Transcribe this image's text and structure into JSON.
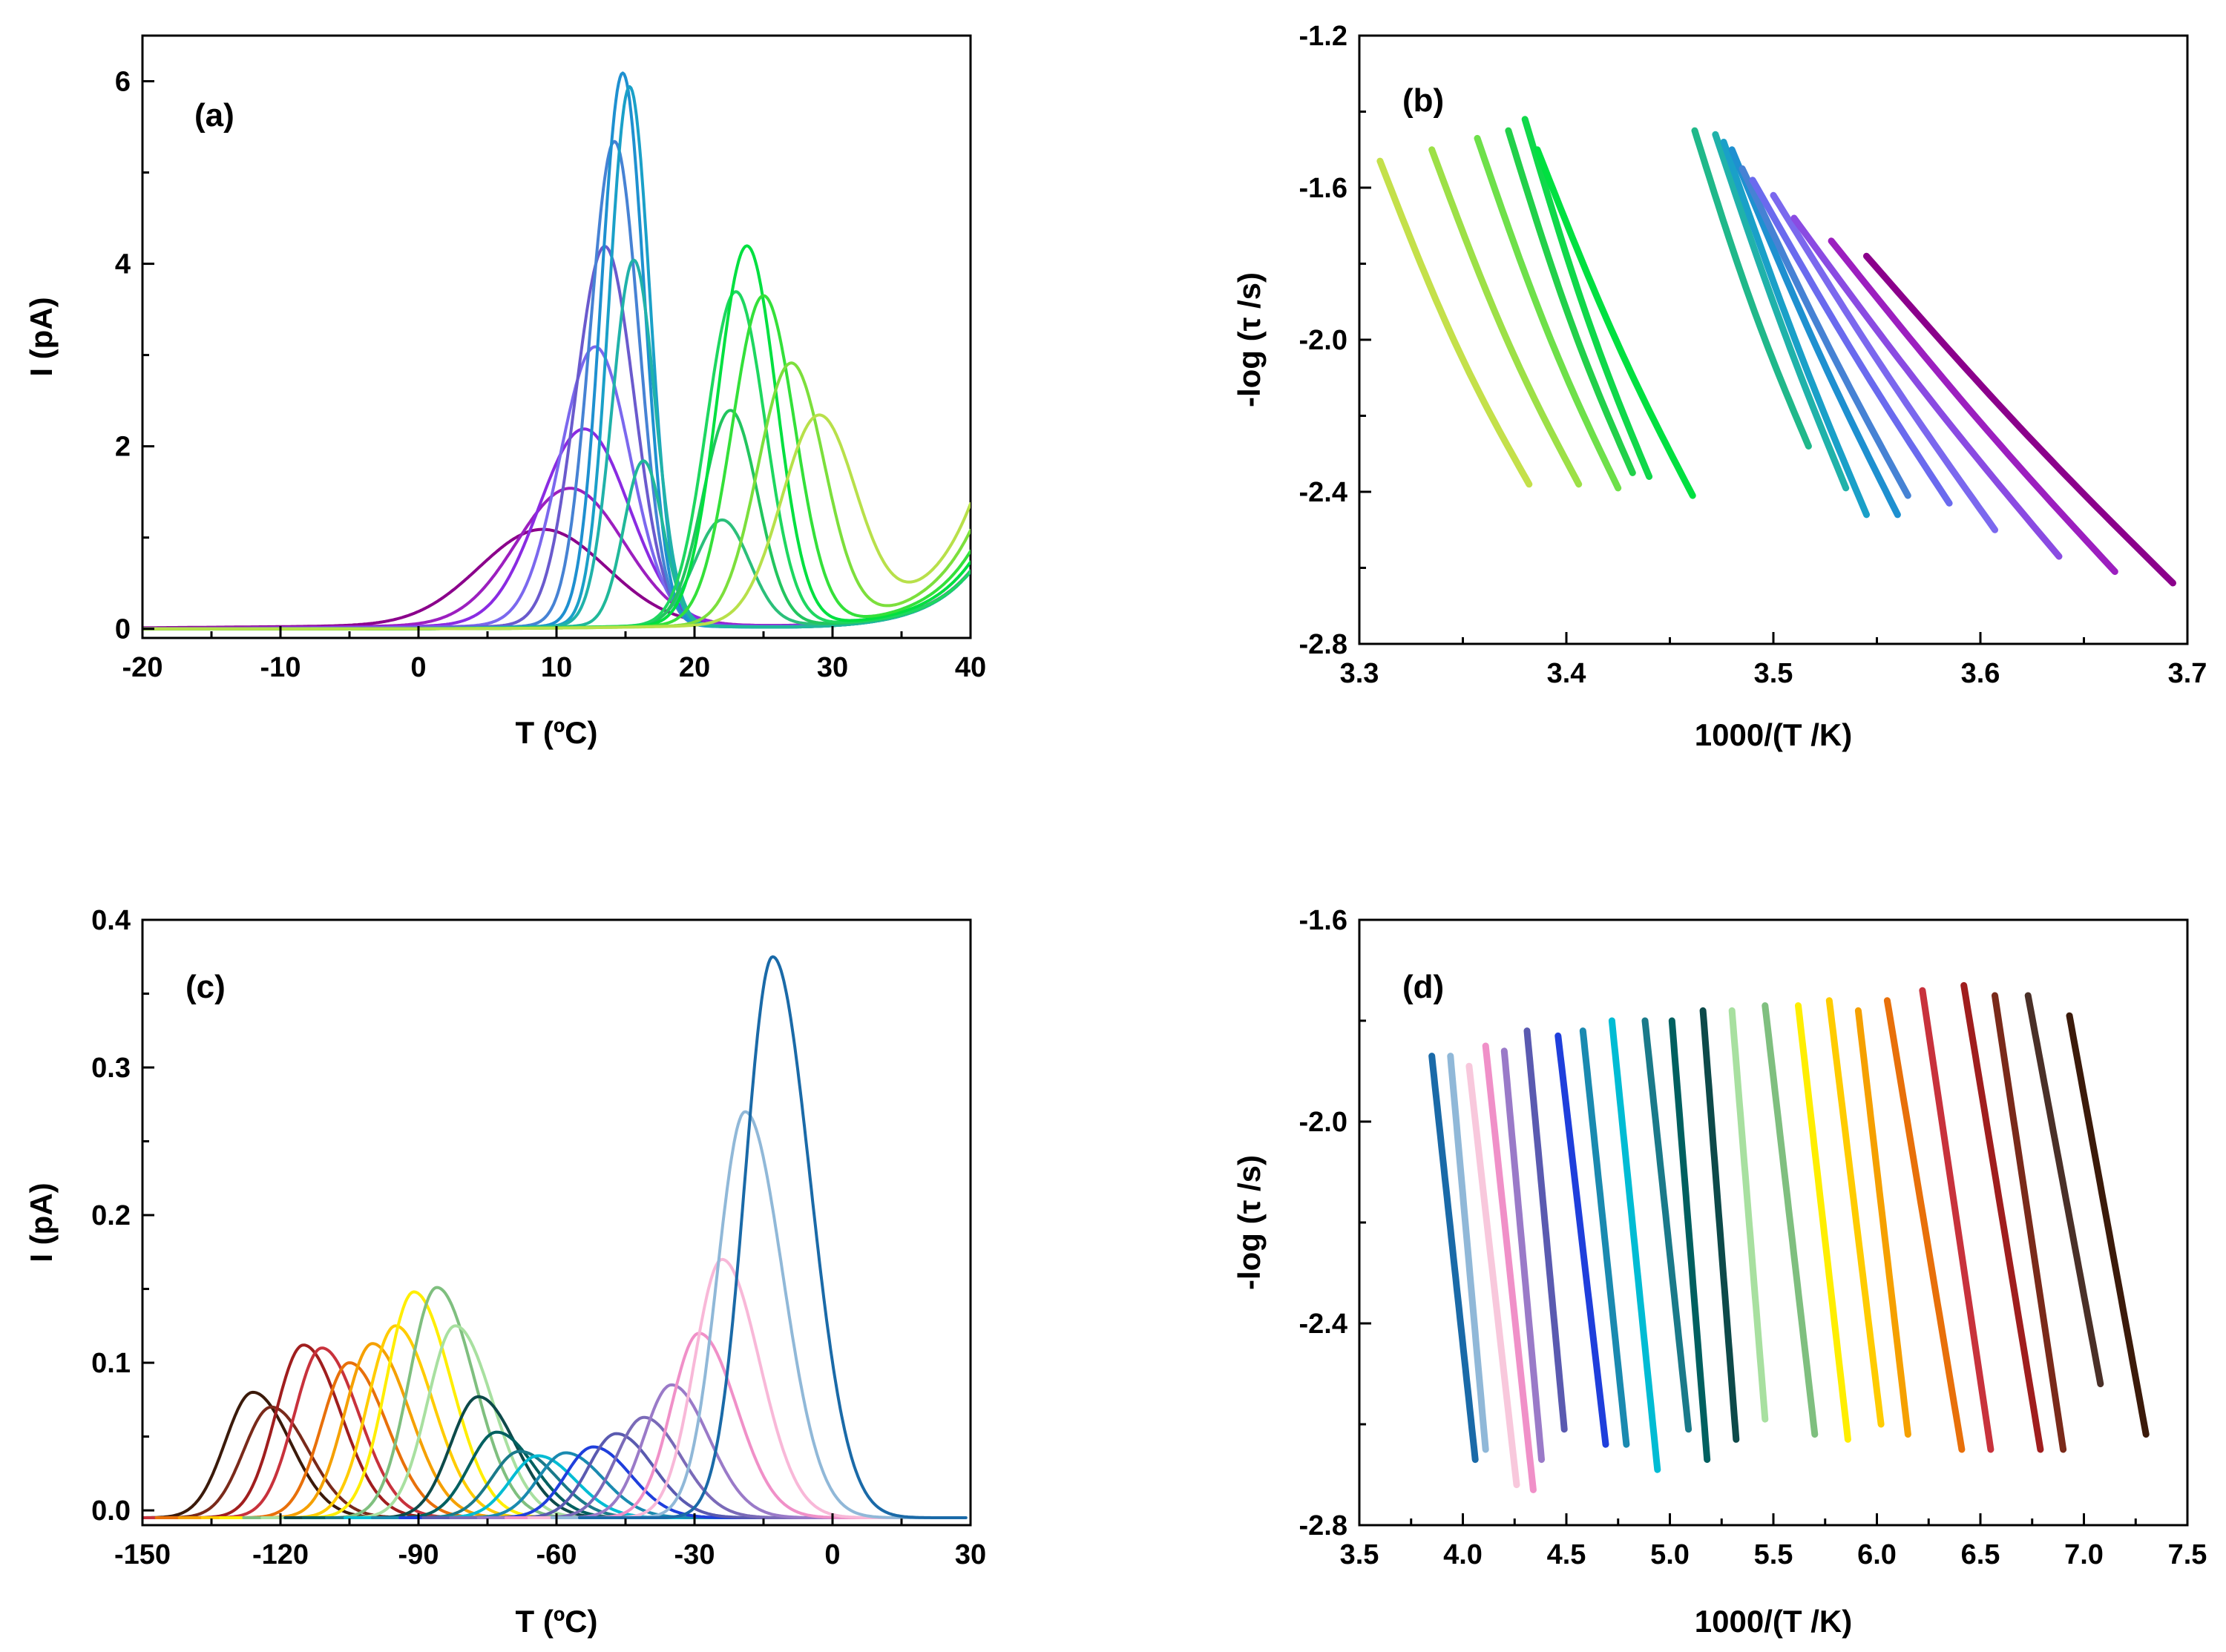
{
  "figure": {
    "panels": [
      "(a)",
      "(b)",
      "(c)",
      "(d)"
    ]
  },
  "chart_data": [
    {
      "id": "a",
      "type": "line",
      "panel_label": "(a)",
      "xlabel": "T (ºC)",
      "ylabel": "I (pA)",
      "xlim": [
        -20,
        40
      ],
      "ylim": [
        -0.1,
        6.5
      ],
      "xticks": [
        -20,
        -10,
        0,
        10,
        20,
        30,
        40
      ],
      "yticks": [
        0,
        2,
        4,
        6
      ],
      "background": {
        "center": 33,
        "scale": 3.4
      },
      "series": [
        {
          "name": "a1",
          "color": "#8b008b",
          "amp": 1.05,
          "center": 9,
          "width": 6.5,
          "bg_shift": 0
        },
        {
          "name": "a2",
          "color": "#9c1fbf",
          "amp": 1.5,
          "center": 11,
          "width": 5.5,
          "bg_shift": 0
        },
        {
          "name": "a3",
          "color": "#8a2be2",
          "amp": 2.15,
          "center": 12,
          "width": 4.6,
          "bg_shift": 0
        },
        {
          "name": "a4",
          "color": "#7b68ee",
          "amp": 3.05,
          "center": 12.8,
          "width": 3.6,
          "bg_shift": 0
        },
        {
          "name": "a5",
          "color": "#6a5acd",
          "amp": 4.15,
          "center": 13.5,
          "width": 3.0,
          "bg_shift": 0
        },
        {
          "name": "a6",
          "color": "#4682d4",
          "amp": 5.3,
          "center": 14.2,
          "width": 2.5,
          "bg_shift": 0
        },
        {
          "name": "a7",
          "color": "#1e90d0",
          "amp": 6.05,
          "center": 14.8,
          "width": 2.2,
          "bg_shift": 0
        },
        {
          "name": "a8",
          "color": "#1aa0c8",
          "amp": 5.9,
          "center": 15.3,
          "width": 2.1,
          "bg_shift": 0
        },
        {
          "name": "a9",
          "color": "#20b2aa",
          "amp": 4.0,
          "center": 15.6,
          "width": 2.2,
          "bg_shift": 0
        },
        {
          "name": "a10",
          "color": "#20b89a",
          "amp": 1.8,
          "center": 16.3,
          "width": 2.0,
          "bg_shift": 0
        },
        {
          "name": "a11",
          "color": "#2bbf7a",
          "amp": 1.15,
          "center": 22,
          "width": 2.8,
          "bg_shift": 0
        },
        {
          "name": "a12",
          "color": "#22c55e",
          "amp": 2.35,
          "center": 22.6,
          "width": 2.8,
          "bg_shift": 0
        },
        {
          "name": "a13",
          "color": "#1ed760",
          "amp": 3.65,
          "center": 23,
          "width": 3.0,
          "bg_shift": 0
        },
        {
          "name": "a14",
          "color": "#00e040",
          "amp": 4.15,
          "center": 23.8,
          "width": 3.0,
          "bg_shift": 0.5
        },
        {
          "name": "a15",
          "color": "#34e03a",
          "amp": 3.6,
          "center": 25,
          "width": 3.2,
          "bg_shift": 1.0
        },
        {
          "name": "a16",
          "color": "#7cdf3c",
          "amp": 2.85,
          "center": 27,
          "width": 3.4,
          "bg_shift": 1.8
        },
        {
          "name": "a17",
          "color": "#b8e04a",
          "amp": 2.25,
          "center": 29,
          "width": 3.8,
          "bg_shift": 2.6
        }
      ]
    },
    {
      "id": "b",
      "type": "line",
      "panel_label": "(b)",
      "xlabel": "1000/(T /K)",
      "ylabel": "-log (τ /s)",
      "xlim": [
        3.3,
        3.7
      ],
      "ylim": [
        -2.8,
        -1.2
      ],
      "xticks": [
        3.3,
        3.4,
        3.5,
        3.6,
        3.7
      ],
      "yticks": [
        -2.8,
        -2.4,
        -2.0,
        -1.6,
        -1.2
      ],
      "series": [
        {
          "name": "b1",
          "color": "#c4e04a",
          "x": [
            3.31,
            3.382
          ],
          "y": [
            -1.53,
            -2.38
          ],
          "bend": 0.05
        },
        {
          "name": "b2",
          "color": "#9de047",
          "x": [
            3.335,
            3.406
          ],
          "y": [
            -1.5,
            -2.38
          ],
          "bend": 0.05
        },
        {
          "name": "b3",
          "color": "#6ee04a",
          "x": [
            3.357,
            3.425
          ],
          "y": [
            -1.47,
            -2.39
          ],
          "bend": 0.05
        },
        {
          "name": "b4",
          "color": "#22d04a",
          "x": [
            3.372,
            3.432
          ],
          "y": [
            -1.45,
            -2.35
          ],
          "bend": 0.05
        },
        {
          "name": "b5",
          "color": "#10d84a",
          "x": [
            3.38,
            3.44
          ],
          "y": [
            -1.42,
            -2.36
          ],
          "bend": 0.05
        },
        {
          "name": "b6",
          "color": "#00e040",
          "x": [
            3.386,
            3.461
          ],
          "y": [
            -1.5,
            -2.41
          ],
          "bend": 0.04
        },
        {
          "name": "b7",
          "color": "#20b88a",
          "x": [
            3.462,
            3.517
          ],
          "y": [
            -1.45,
            -2.28
          ],
          "bend": 0.04
        },
        {
          "name": "b8",
          "color": "#20b2aa",
          "x": [
            3.472,
            3.535
          ],
          "y": [
            -1.46,
            -2.39
          ],
          "bend": 0.03
        },
        {
          "name": "b9",
          "color": "#1aa0c8",
          "x": [
            3.476,
            3.545
          ],
          "y": [
            -1.48,
            -2.46
          ],
          "bend": 0.03
        },
        {
          "name": "b10",
          "color": "#1e90d0",
          "x": [
            3.48,
            3.56
          ],
          "y": [
            -1.5,
            -2.46
          ],
          "bend": 0.03
        },
        {
          "name": "b11",
          "color": "#4682d4",
          "x": [
            3.485,
            3.565
          ],
          "y": [
            -1.55,
            -2.41
          ],
          "bend": 0.02
        },
        {
          "name": "b12",
          "color": "#6a6aee",
          "x": [
            3.49,
            3.585
          ],
          "y": [
            -1.58,
            -2.43
          ],
          "bend": 0.02
        },
        {
          "name": "b13",
          "color": "#7b68ee",
          "x": [
            3.5,
            3.607
          ],
          "y": [
            -1.62,
            -2.5
          ],
          "bend": 0.02
        },
        {
          "name": "b14",
          "color": "#8a4be2",
          "x": [
            3.51,
            3.638
          ],
          "y": [
            -1.68,
            -2.57
          ],
          "bend": 0.02
        },
        {
          "name": "b15",
          "color": "#9c1fbf",
          "x": [
            3.528,
            3.665
          ],
          "y": [
            -1.74,
            -2.61
          ],
          "bend": 0.02
        },
        {
          "name": "b16",
          "color": "#8b008b",
          "x": [
            3.545,
            3.693
          ],
          "y": [
            -1.78,
            -2.64
          ],
          "bend": 0.02
        }
      ]
    },
    {
      "id": "c",
      "type": "line",
      "panel_label": "(c)",
      "xlabel": "T (ºC)",
      "ylabel": "I (pA)",
      "xlim": [
        -150,
        30
      ],
      "ylim": [
        -0.01,
        0.4
      ],
      "xticks": [
        -150,
        -120,
        -90,
        -60,
        -30,
        0,
        30
      ],
      "yticks": [
        0.0,
        0.1,
        0.2,
        0.3,
        0.4
      ],
      "series": [
        {
          "name": "c1",
          "color": "#3b1a0a",
          "amp": 0.085,
          "center": -126,
          "width": 8.5
        },
        {
          "name": "c2",
          "color": "#7a2a1a",
          "amp": 0.075,
          "center": -122,
          "width": 8.5
        },
        {
          "name": "c3",
          "color": "#a01e1e",
          "amp": 0.117,
          "center": -115,
          "width": 8.5
        },
        {
          "name": "c4",
          "color": "#c8323c",
          "amp": 0.115,
          "center": -111,
          "width": 8.5
        },
        {
          "name": "c5",
          "color": "#e8700a",
          "amp": 0.105,
          "center": -105,
          "width": 8.5
        },
        {
          "name": "c6",
          "color": "#f5a000",
          "amp": 0.118,
          "center": -100,
          "width": 8.5
        },
        {
          "name": "c7",
          "color": "#ffcc00",
          "amp": 0.13,
          "center": -95,
          "width": 8.5
        },
        {
          "name": "c8",
          "color": "#ffee00",
          "amp": 0.153,
          "center": -91,
          "width": 8.5
        },
        {
          "name": "c9",
          "color": "#7fbf7f",
          "amp": 0.156,
          "center": -86,
          "width": 8.5
        },
        {
          "name": "c10",
          "color": "#a8e0a0",
          "amp": 0.13,
          "center": -82,
          "width": 8.5
        },
        {
          "name": "c11",
          "color": "#0d4a4a",
          "amp": 0.082,
          "center": -77,
          "width": 8.5
        },
        {
          "name": "c12",
          "color": "#006060",
          "amp": 0.058,
          "center": -73,
          "width": 8.5
        },
        {
          "name": "c13",
          "color": "#1a7a8a",
          "amp": 0.045,
          "center": -68,
          "width": 8.5
        },
        {
          "name": "c14",
          "color": "#00bcd4",
          "amp": 0.042,
          "center": -64,
          "width": 8.5
        },
        {
          "name": "c15",
          "color": "#1a8ab0",
          "amp": 0.044,
          "center": -58,
          "width": 8.5
        },
        {
          "name": "c16",
          "color": "#1f3fdc",
          "amp": 0.048,
          "center": -52,
          "width": 8.5
        },
        {
          "name": "c17",
          "color": "#5a5ab0",
          "amp": 0.057,
          "center": -47,
          "width": 8.5
        },
        {
          "name": "c18",
          "color": "#7a6ab8",
          "amp": 0.068,
          "center": -41,
          "width": 8.5
        },
        {
          "name": "c19",
          "color": "#9a7ac8",
          "amp": 0.09,
          "center": -35,
          "width": 8.5
        },
        {
          "name": "c20",
          "color": "#f090c8",
          "amp": 0.125,
          "center": -29,
          "width": 8.5
        },
        {
          "name": "c21",
          "color": "#f8b8d8",
          "amp": 0.175,
          "center": -24,
          "width": 8.5
        },
        {
          "name": "c22",
          "color": "#90b8d8",
          "amp": 0.275,
          "center": -19,
          "width": 8.5
        },
        {
          "name": "c23",
          "color": "#1a6aa8",
          "amp": 0.38,
          "center": -13,
          "width": 8.5
        }
      ]
    },
    {
      "id": "d",
      "type": "line",
      "panel_label": "(d)",
      "xlabel": "1000/(T /K)",
      "ylabel": "-log (τ /s)",
      "xlim": [
        3.5,
        7.5
      ],
      "ylim": [
        -2.8,
        -1.6
      ],
      "xticks": [
        3.5,
        4.0,
        4.5,
        5.0,
        5.5,
        6.0,
        6.5,
        7.0,
        7.5
      ],
      "yticks": [
        -2.8,
        -2.4,
        -2.0,
        -1.6
      ],
      "series": [
        {
          "name": "d1",
          "color": "#1a6aa8",
          "x": [
            3.85,
            4.06
          ],
          "y": [
            -1.87,
            -2.67
          ]
        },
        {
          "name": "d2",
          "color": "#90b8d8",
          "x": [
            3.94,
            4.11
          ],
          "y": [
            -1.87,
            -2.65
          ]
        },
        {
          "name": "d3",
          "color": "#f8c8dc",
          "x": [
            4.03,
            4.26
          ],
          "y": [
            -1.89,
            -2.72
          ]
        },
        {
          "name": "d4",
          "color": "#f090c8",
          "x": [
            4.11,
            4.34
          ],
          "y": [
            -1.85,
            -2.73
          ]
        },
        {
          "name": "d5",
          "color": "#9a7ac8",
          "x": [
            4.2,
            4.38
          ],
          "y": [
            -1.86,
            -2.67
          ]
        },
        {
          "name": "d6",
          "color": "#5a5ab0",
          "x": [
            4.31,
            4.49
          ],
          "y": [
            -1.82,
            -2.61
          ]
        },
        {
          "name": "d7",
          "color": "#1f3fdc",
          "x": [
            4.46,
            4.69
          ],
          "y": [
            -1.83,
            -2.64
          ]
        },
        {
          "name": "d8",
          "color": "#1a8ab0",
          "x": [
            4.58,
            4.79
          ],
          "y": [
            -1.82,
            -2.64
          ]
        },
        {
          "name": "d9",
          "color": "#00bcd4",
          "x": [
            4.72,
            4.94
          ],
          "y": [
            -1.8,
            -2.69
          ]
        },
        {
          "name": "d10",
          "color": "#1a7a8a",
          "x": [
            4.88,
            5.09
          ],
          "y": [
            -1.8,
            -2.61
          ]
        },
        {
          "name": "d11",
          "color": "#006060",
          "x": [
            5.01,
            5.18
          ],
          "y": [
            -1.8,
            -2.67
          ]
        },
        {
          "name": "d12",
          "color": "#0d4a4a",
          "x": [
            5.16,
            5.32
          ],
          "y": [
            -1.78,
            -2.63
          ]
        },
        {
          "name": "d13",
          "color": "#a8e0a0",
          "x": [
            5.3,
            5.46
          ],
          "y": [
            -1.78,
            -2.59
          ]
        },
        {
          "name": "d14",
          "color": "#7fbf7f",
          "x": [
            5.46,
            5.7
          ],
          "y": [
            -1.77,
            -2.62
          ]
        },
        {
          "name": "d15",
          "color": "#ffee00",
          "x": [
            5.62,
            5.86
          ],
          "y": [
            -1.77,
            -2.63
          ]
        },
        {
          "name": "d16",
          "color": "#ffcc00",
          "x": [
            5.77,
            6.02
          ],
          "y": [
            -1.76,
            -2.6
          ]
        },
        {
          "name": "d17",
          "color": "#f5a000",
          "x": [
            5.91,
            6.15
          ],
          "y": [
            -1.78,
            -2.62
          ]
        },
        {
          "name": "d18",
          "color": "#e8700a",
          "x": [
            6.05,
            6.41
          ],
          "y": [
            -1.76,
            -2.65
          ]
        },
        {
          "name": "d19",
          "color": "#c8323c",
          "x": [
            6.22,
            6.55
          ],
          "y": [
            -1.74,
            -2.65
          ]
        },
        {
          "name": "d20",
          "color": "#a01e1e",
          "x": [
            6.42,
            6.79
          ],
          "y": [
            -1.73,
            -2.65
          ]
        },
        {
          "name": "d21",
          "color": "#7a2a1a",
          "x": [
            6.57,
            6.9
          ],
          "y": [
            -1.75,
            -2.65
          ]
        },
        {
          "name": "d22",
          "color": "#4a3028",
          "x": [
            6.73,
            7.08
          ],
          "y": [
            -1.75,
            -2.52
          ]
        },
        {
          "name": "d23",
          "color": "#3b1a0a",
          "x": [
            6.93,
            7.3
          ],
          "y": [
            -1.79,
            -2.62
          ]
        }
      ]
    }
  ]
}
